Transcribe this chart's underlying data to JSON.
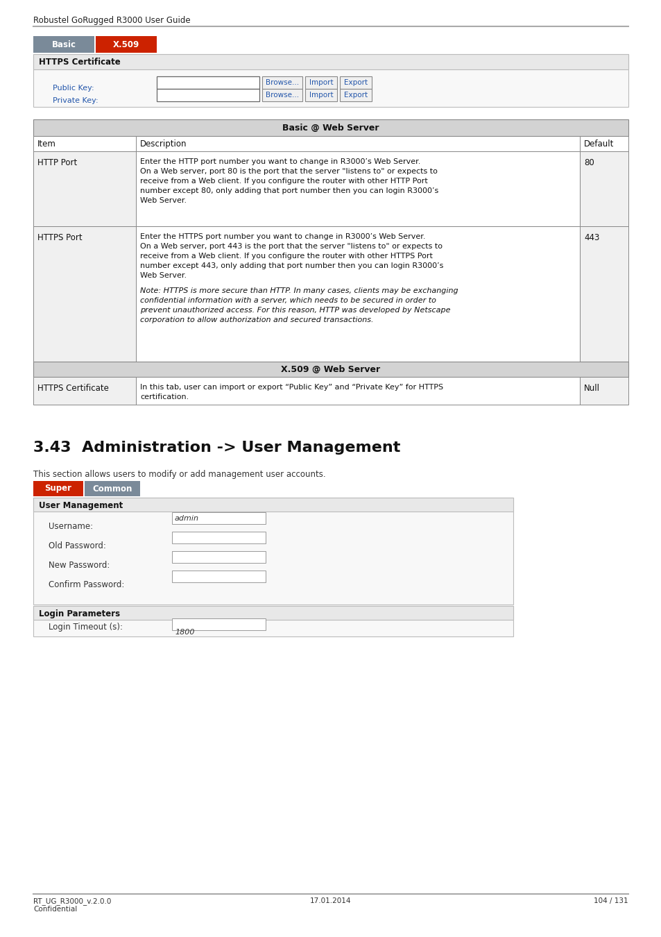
{
  "header_text": "Robustel GoRugged R3000 User Guide",
  "tab1_label": "Basic",
  "tab1_color": "#7a8a99",
  "tab2_label": "X.509",
  "tab2_color": "#cc2200",
  "https_cert_section_label": "HTTPS Certificate",
  "table1_title": "Basic @ Web Server",
  "table1_headers": [
    "Item",
    "Description",
    "Default"
  ],
  "http_port_item": "HTTP Port",
  "http_port_desc1": "Enter the HTTP port number you want to change in R3000’s Web Server.",
  "http_port_desc2": "On a Web server, port 80 is the port that the server \"listens to\" or expects to",
  "http_port_desc3": "receive from a Web client. If you configure the router with other HTTP Port",
  "http_port_desc4": "number except 80, only adding that port number then you can login R3000’s",
  "http_port_desc5": "Web Server.",
  "http_port_default": "80",
  "https_port_item": "HTTPS Port",
  "https_port_desc1": "Enter the HTTPS port number you want to change in R3000’s Web Server.",
  "https_port_desc2": "On a Web server, port 443 is the port that the server \"listens to\" or expects to",
  "https_port_desc3": "receive from a Web client. If you configure the router with other HTTPS Port",
  "https_port_desc4": "number except 443, only adding that port number then you can login R3000’s",
  "https_port_desc5": "Web Server.",
  "https_port_note1": "Note: HTTPS is more secure than HTTP. In many cases, clients may be exchanging",
  "https_port_note2": "confidential information with a server, which needs to be secured in order to",
  "https_port_note3": "prevent unauthorized access. For this reason, HTTP was developed by Netscape",
  "https_port_note4": "corporation to allow authorization and secured transactions.",
  "https_port_default": "443",
  "x509_section_title": "X.509 @ Web Server",
  "https_cert_item": "HTTPS Certificate",
  "https_cert_desc1": "In this tab, user can import or export “Public Key” and “Private Key” for HTTPS",
  "https_cert_desc2": "certification.",
  "https_cert_default": "Null",
  "section_heading": "3.43  Administration -> User Management",
  "section_intro": "This section allows users to modify or add management user accounts.",
  "tab3_label": "Super",
  "tab3_color": "#cc2200",
  "tab4_label": "Common",
  "tab4_color": "#7a8a99",
  "user_mgmt_section": "User Management",
  "user_mgmt_fields": [
    "Username:",
    "Old Password:",
    "New Password:",
    "Confirm Password:"
  ],
  "username_value": "admin",
  "login_params_section": "Login Parameters",
  "login_timeout_label": "Login Timeout (s):",
  "login_timeout_value": "1800",
  "footer_left1": "RT_UG_R3000_v.2.0.0",
  "footer_left2": "Confidential",
  "footer_center": "17.01.2014",
  "footer_right": "104 / 131",
  "bg_color": "#ffffff",
  "table_hdr_bg": "#d3d3d3",
  "table_border": "#888888",
  "row_bg_gray": "#f0f0f0",
  "row_bg_white": "#ffffff",
  "section_hdr_bg": "#e8e8e8",
  "section_border": "#bbbbbb"
}
